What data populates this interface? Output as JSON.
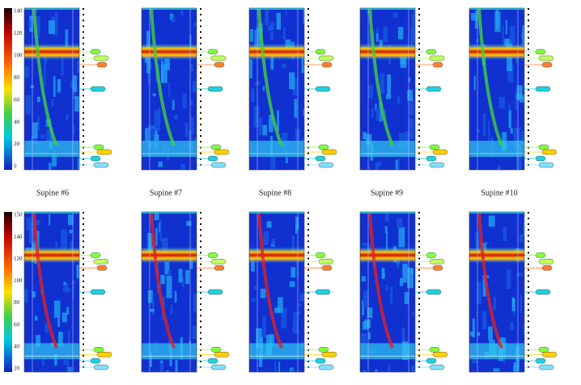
{
  "colorbars": [
    {
      "ticks": [
        "140",
        "120",
        "100",
        "80",
        "60",
        "40",
        "20",
        "0"
      ]
    },
    {
      "ticks": [
        "150",
        "140",
        "120",
        "100",
        "80",
        "60",
        "40",
        "20"
      ]
    }
  ],
  "captions": [
    "Supine #6",
    "Supine #7",
    "Supine #8",
    "Supine #9",
    "Supine #10"
  ]
}
